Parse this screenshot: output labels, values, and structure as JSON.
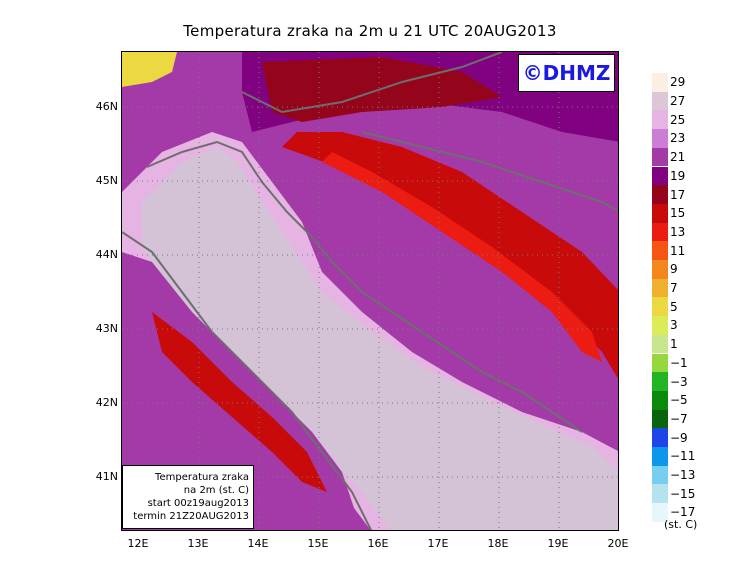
{
  "title": "Temperatura zraka na 2m u 21 UTC 20AUG2013",
  "logo_text": "©DHMZ",
  "y_axis_labels": [
    "46N",
    "45N",
    "44N",
    "43N",
    "42N",
    "41N"
  ],
  "x_axis_labels": [
    "12E",
    "13E",
    "14E",
    "15E",
    "16E",
    "17E",
    "18E",
    "19E",
    "20E"
  ],
  "legend": {
    "levels": [
      "29",
      "27",
      "25",
      "23",
      "21",
      "19",
      "17",
      "15",
      "13",
      "11",
      "9",
      "7",
      "5",
      "3",
      "1",
      "−1",
      "−3",
      "−5",
      "−7",
      "−9",
      "−11",
      "−13",
      "−15",
      "−17"
    ],
    "unit": "(st. C)",
    "colors": [
      "#fbefe4",
      "#dcc6d8",
      "#e6b4e2",
      "#cc7ed4",
      "#a33aa8",
      "#800280",
      "#94041a",
      "#c80a0a",
      "#ec1c12",
      "#f45512",
      "#f4861e",
      "#f0b02e",
      "#ecd840",
      "#dcec58",
      "#c8e690",
      "#94d83e",
      "#22b422",
      "#0a8a0a",
      "#0a640a",
      "#1e46e6",
      "#0c96ec",
      "#78cef0",
      "#b4e2ee",
      "#e6f6fa"
    ]
  },
  "info_box": {
    "line1": "Temperatura zraka",
    "line2": "na 2m (st. C)",
    "line3": "start 00z19aug2013",
    "line4": "termin 21Z20AUG2013"
  },
  "colors": {
    "sea": "#d4c2d6",
    "coast_band": "#e6b4e2",
    "land_warm": "#a33aa8",
    "land_hot": "#c80a0a",
    "border_line": "#6e6e6e"
  }
}
